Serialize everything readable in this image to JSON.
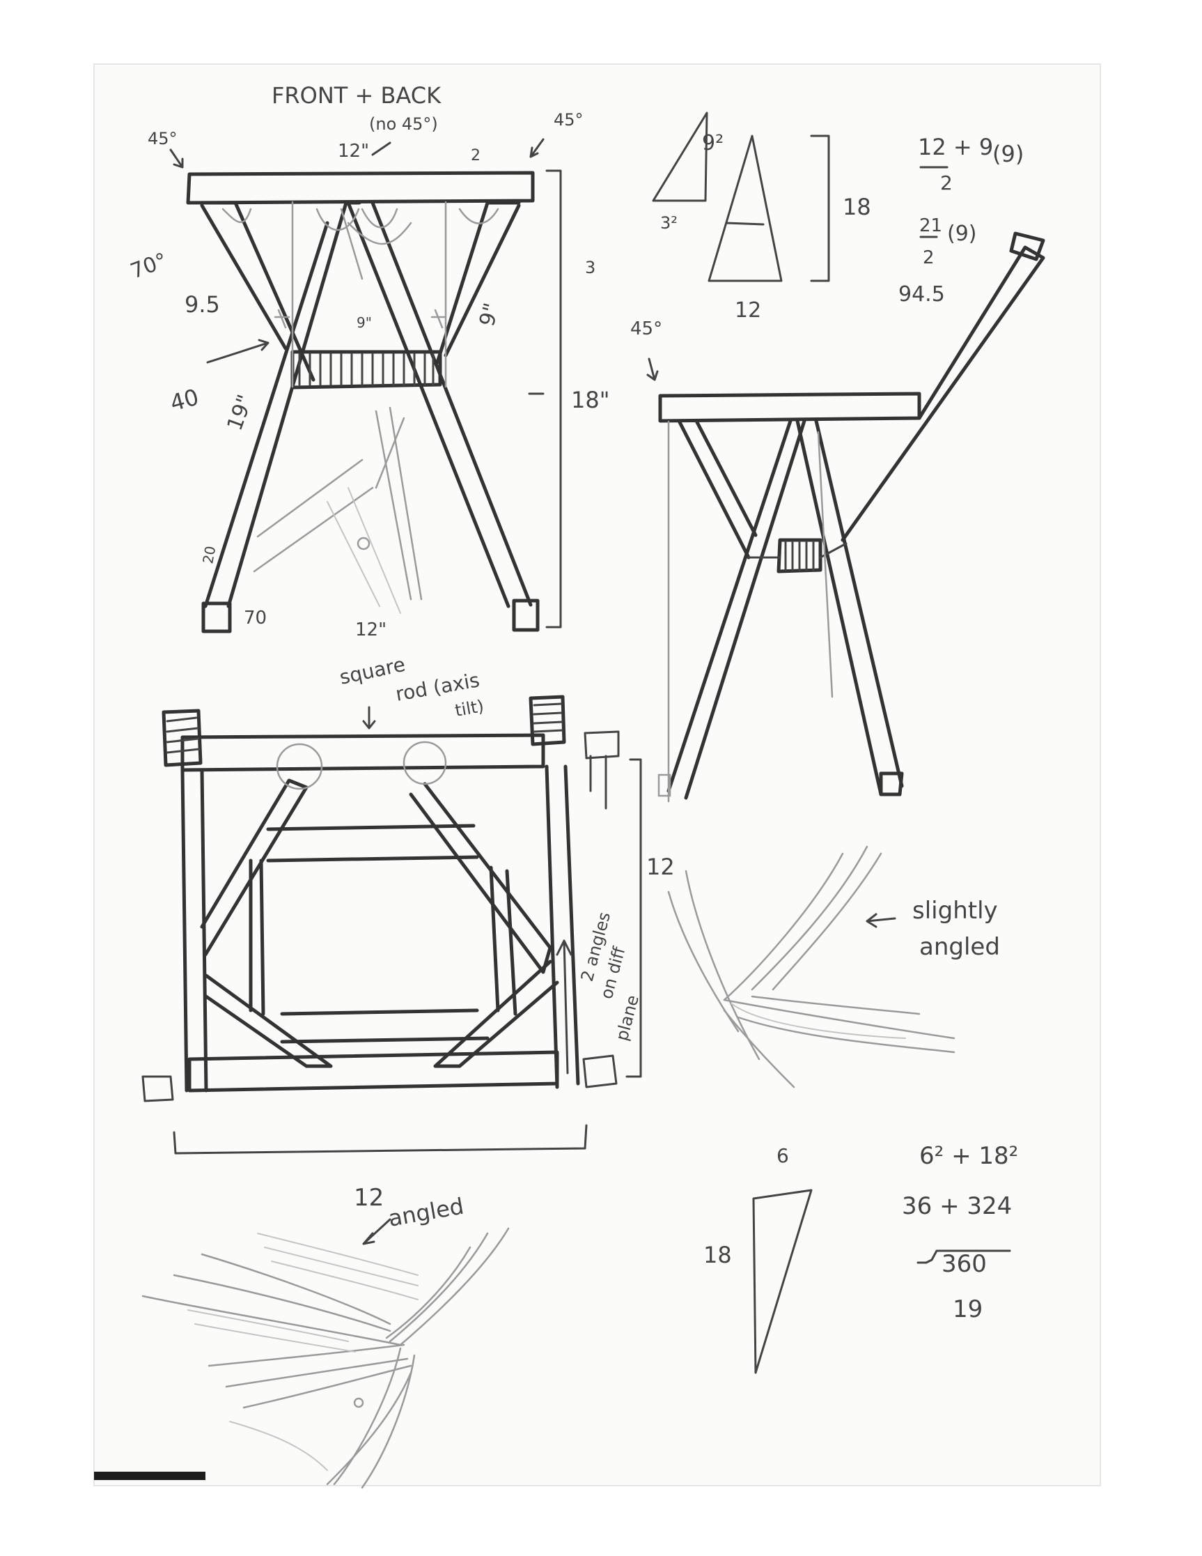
{
  "colors": {
    "paper": "#fbfbfa",
    "ink": "#333333",
    "pencil": "#9a9a9a",
    "pencil_light": "#c4c4c4"
  },
  "front_view": {
    "title": "FRONT + BACK",
    "note": "(no 45°)",
    "corner_left": "45°",
    "corner_right": "45°",
    "top_width": "12\"",
    "top_depth": "2",
    "angle_brace": "70°",
    "brace_length": "9.5",
    "angle_cross": "40",
    "leg_upper": "19\"",
    "brace_right": "9\"",
    "stretcher": "9\"",
    "height_total": "18\"",
    "height_top": "3",
    "foot_height": "20",
    "foot_angle": "70",
    "bottom_width": "12\""
  },
  "triangle_calc": {
    "small_top": "9²",
    "small_base": "3²",
    "height": "18",
    "base": "12",
    "formula_line1": "12 + 9",
    "formula_den1": "2",
    "formula_mult1": "(9)",
    "formula_num2": "21",
    "formula_den2": "2",
    "formula_mult2": "(9)",
    "result": "94.5"
  },
  "side_view": {
    "corner": "45°"
  },
  "top_view": {
    "label_line1": "square",
    "label_line2": "rod (axis",
    "label_line3": "tilt)",
    "side_dim": "12",
    "vertical_note_line1": "2 angles",
    "vertical_note_line2": "on diff",
    "vertical_note_line3": "plane"
  },
  "detail_right": {
    "label_line1": "slightly",
    "label_line2": "angled"
  },
  "detail_bottom": {
    "dim": "12",
    "label": "angled"
  },
  "pythagoras": {
    "top": "6",
    "side": "18",
    "eq1": "6² + 18²",
    "eq2": "36 + 324",
    "eq3": "360",
    "result": "19"
  }
}
